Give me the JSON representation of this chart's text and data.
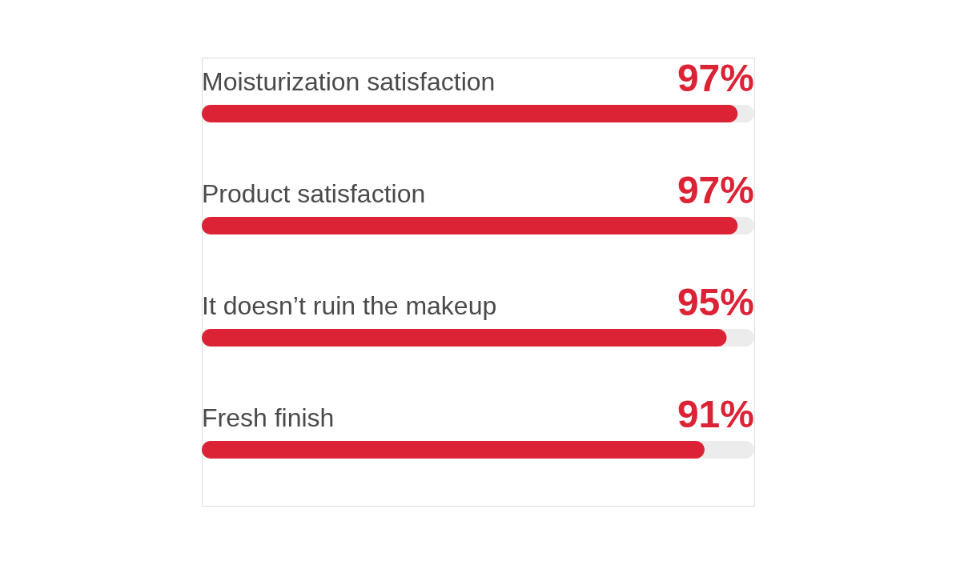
{
  "chart_data": {
    "type": "bar",
    "orientation": "horizontal",
    "categories": [
      "Moisturization satisfaction",
      "Product satisfaction",
      "It doesn’t ruin the makeup",
      "Fresh finish"
    ],
    "values": [
      97,
      97,
      95,
      91
    ],
    "value_labels": [
      "97%",
      "97%",
      "95%",
      "91%"
    ],
    "color": "#dc2336",
    "xlim": [
      0,
      100
    ],
    "tick_labels": false
  }
}
